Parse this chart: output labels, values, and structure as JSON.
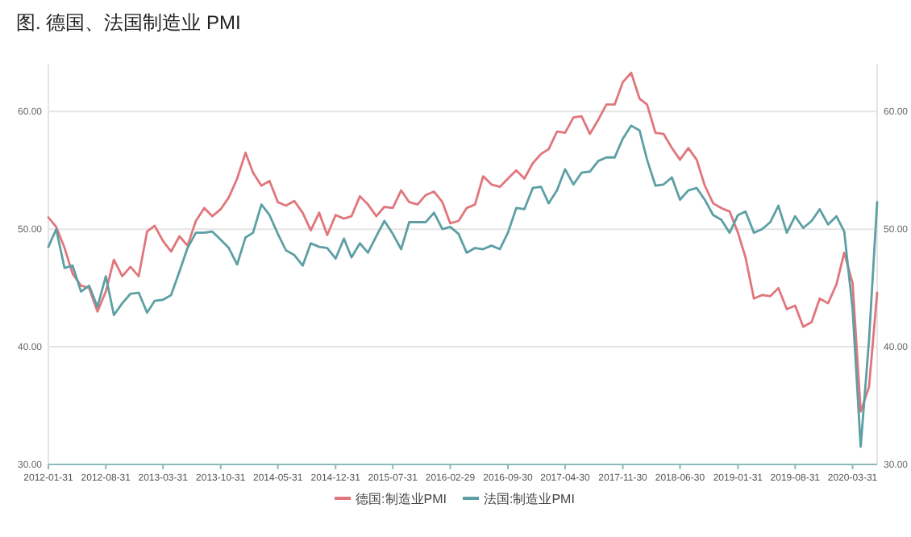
{
  "chart_data": {
    "type": "line",
    "title": "图. 德国、法国制造业 PMI",
    "x": [
      "2012-01-31",
      "2012-02-29",
      "2012-03-31",
      "2012-04-30",
      "2012-05-31",
      "2012-06-30",
      "2012-07-31",
      "2012-08-31",
      "2012-09-30",
      "2012-10-31",
      "2012-11-30",
      "2012-12-31",
      "2013-01-31",
      "2013-02-28",
      "2013-03-31",
      "2013-04-30",
      "2013-05-31",
      "2013-06-30",
      "2013-07-31",
      "2013-08-31",
      "2013-09-30",
      "2013-10-31",
      "2013-11-30",
      "2013-12-31",
      "2014-01-31",
      "2014-02-28",
      "2014-03-31",
      "2014-04-30",
      "2014-05-31",
      "2014-06-30",
      "2014-07-31",
      "2014-08-31",
      "2014-09-30",
      "2014-10-31",
      "2014-11-30",
      "2014-12-31",
      "2015-01-31",
      "2015-02-28",
      "2015-03-31",
      "2015-04-30",
      "2015-05-31",
      "2015-06-30",
      "2015-07-31",
      "2015-08-31",
      "2015-09-30",
      "2015-10-31",
      "2015-11-30",
      "2015-12-31",
      "2016-01-31",
      "2016-02-29",
      "2016-03-31",
      "2016-04-30",
      "2016-05-31",
      "2016-06-30",
      "2016-07-31",
      "2016-08-31",
      "2016-09-30",
      "2016-10-31",
      "2016-11-30",
      "2016-12-31",
      "2017-01-31",
      "2017-02-28",
      "2017-03-31",
      "2017-04-30",
      "2017-05-31",
      "2017-06-30",
      "2017-07-31",
      "2017-08-31",
      "2017-09-30",
      "2017-10-31",
      "2017-11-30",
      "2017-12-31",
      "2018-01-31",
      "2018-02-28",
      "2018-03-31",
      "2018-04-30",
      "2018-05-31",
      "2018-06-30",
      "2018-07-31",
      "2018-08-31",
      "2018-09-30",
      "2018-10-31",
      "2018-11-30",
      "2018-12-31",
      "2019-01-31",
      "2019-02-28",
      "2019-03-31",
      "2019-04-30",
      "2019-05-31",
      "2019-06-30",
      "2019-07-31",
      "2019-08-31",
      "2019-09-30",
      "2019-10-31",
      "2019-11-30",
      "2019-12-31",
      "2020-01-31",
      "2020-02-29",
      "2020-03-31",
      "2020-04-30",
      "2020-05-31",
      "2020-06-30"
    ],
    "series": [
      {
        "name": "德国:制造业PMI",
        "color": "#e0767c",
        "values": [
          51.0,
          50.2,
          48.4,
          46.2,
          45.2,
          45.0,
          43.0,
          44.7,
          47.4,
          46.0,
          46.8,
          46.0,
          49.8,
          50.3,
          49.0,
          48.1,
          49.4,
          48.6,
          50.7,
          51.8,
          51.1,
          51.7,
          52.7,
          54.3,
          56.5,
          54.8,
          53.7,
          54.1,
          52.3,
          52.0,
          52.4,
          51.4,
          49.9,
          51.4,
          49.5,
          51.2,
          50.9,
          51.1,
          52.8,
          52.1,
          51.1,
          51.9,
          51.8,
          53.3,
          52.3,
          52.1,
          52.9,
          53.2,
          52.3,
          50.5,
          50.7,
          51.8,
          52.1,
          54.5,
          53.8,
          53.6,
          54.3,
          55.0,
          54.3,
          55.6,
          56.4,
          56.8,
          58.3,
          58.2,
          59.5,
          59.6,
          58.1,
          59.3,
          60.6,
          60.6,
          62.5,
          63.3,
          61.1,
          60.6,
          58.2,
          58.1,
          56.9,
          55.9,
          56.9,
          55.9,
          53.7,
          52.2,
          51.8,
          51.5,
          49.7,
          47.6,
          44.1,
          44.4,
          44.3,
          45.0,
          43.2,
          43.5,
          41.7,
          42.1,
          44.1,
          43.7,
          45.3,
          48.0,
          45.4,
          34.5,
          36.6,
          44.6
        ]
      },
      {
        "name": "法国:制造业PMI",
        "color": "#5d9fa4",
        "values": [
          48.5,
          50.0,
          46.7,
          46.9,
          44.7,
          45.2,
          43.4,
          46.0,
          42.7,
          43.7,
          44.5,
          44.6,
          42.9,
          43.9,
          44.0,
          44.4,
          46.4,
          48.4,
          49.7,
          49.7,
          49.8,
          49.1,
          48.4,
          47.0,
          49.3,
          49.7,
          52.1,
          51.2,
          49.6,
          48.2,
          47.8,
          46.9,
          48.8,
          48.5,
          48.4,
          47.5,
          49.2,
          47.6,
          48.8,
          48.0,
          49.4,
          50.7,
          49.6,
          48.3,
          50.6,
          50.6,
          50.6,
          51.4,
          50.0,
          50.2,
          49.6,
          48.0,
          48.4,
          48.3,
          48.6,
          48.3,
          49.7,
          51.8,
          51.7,
          53.5,
          53.6,
          52.2,
          53.3,
          55.1,
          53.8,
          54.8,
          54.9,
          55.8,
          56.1,
          56.1,
          57.7,
          58.8,
          58.4,
          55.9,
          53.7,
          53.8,
          54.4,
          52.5,
          53.3,
          53.5,
          52.5,
          51.2,
          50.8,
          49.7,
          51.2,
          51.5,
          49.7,
          50.0,
          50.6,
          52.0,
          49.7,
          51.1,
          50.1,
          50.7,
          51.7,
          50.4,
          51.1,
          49.8,
          43.2,
          31.5,
          40.6,
          52.3
        ]
      }
    ],
    "xlim": [
      "2012-01-31",
      "2020-06-30"
    ],
    "xticks": [
      "2012-01-31",
      "2012-08-31",
      "2013-03-31",
      "2013-10-31",
      "2014-05-31",
      "2014-12-31",
      "2015-07-31",
      "2016-02-29",
      "2016-09-30",
      "2017-04-30",
      "2017-11-30",
      "2018-06-30",
      "2019-01-31",
      "2019-08-31",
      "2020-03-31"
    ],
    "ylim": [
      30,
      64
    ],
    "yticks": [
      {
        "value": 30,
        "label": "30.00"
      },
      {
        "value": 40,
        "label": "40.00"
      },
      {
        "value": 50,
        "label": "50.00"
      },
      {
        "value": 60,
        "label": "60.00"
      }
    ],
    "y2lim": [
      30,
      64
    ],
    "y2ticks": [
      {
        "value": 30,
        "label": "30.00"
      },
      {
        "value": 40,
        "label": "40.00"
      },
      {
        "value": 50,
        "label": "50.00"
      },
      {
        "value": 60,
        "label": "60.00"
      }
    ],
    "grid": "y",
    "legend": "bottom"
  }
}
